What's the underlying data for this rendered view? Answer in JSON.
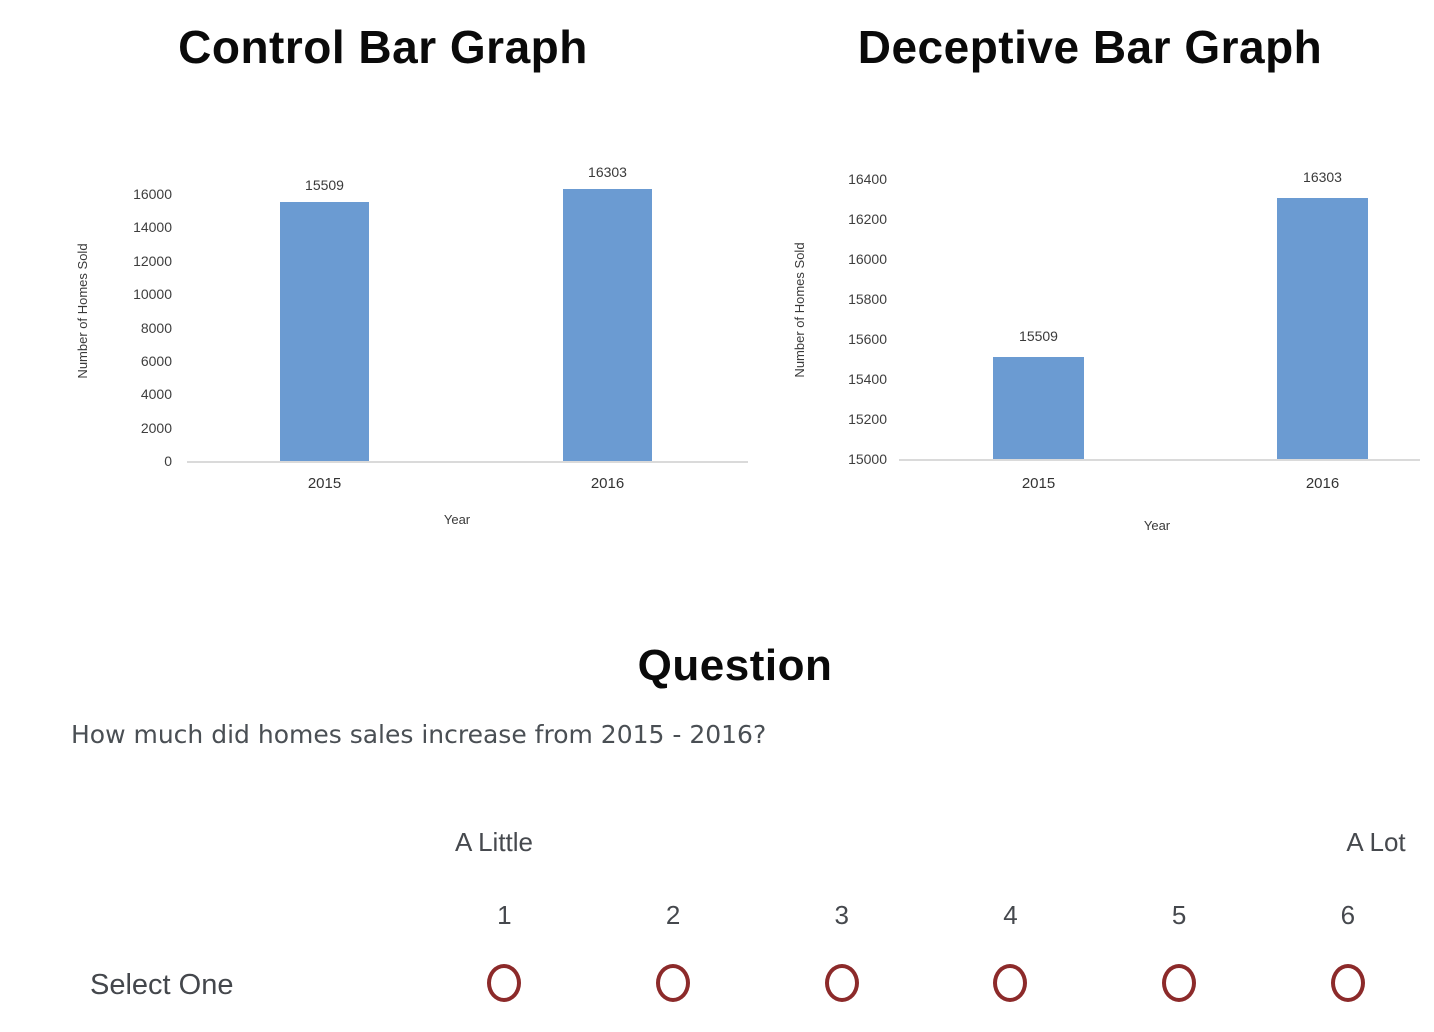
{
  "chart_data": [
    {
      "type": "bar",
      "title": "Control Bar Graph",
      "categories": [
        "2015",
        "2016"
      ],
      "values": [
        15509,
        16303
      ],
      "data_labels": [
        "15509",
        "16303"
      ],
      "xlabel": "Year",
      "ylabel": "Number of Homes Sold",
      "ylim": [
        0,
        16000
      ],
      "tick_step": 2000,
      "grid": false,
      "legend": false
    },
    {
      "type": "bar",
      "title": "Deceptive Bar Graph",
      "categories": [
        "2015",
        "2016"
      ],
      "values": [
        15509,
        16303
      ],
      "data_labels": [
        "15509",
        "16303"
      ],
      "xlabel": "Year",
      "ylabel": "Number of Homes Sold",
      "ylim": [
        15000,
        16400
      ],
      "tick_step": 200,
      "grid": false,
      "legend": false
    }
  ],
  "question": {
    "title": "Question",
    "text": "How much did homes sales increase from 2015 - 2016?",
    "scale": {
      "low_label": "A Little",
      "high_label": "A Lot",
      "options": [
        "1",
        "2",
        "3",
        "4",
        "5",
        "6"
      ],
      "select_label": "Select One"
    }
  },
  "colors": {
    "bar_fill": "#6b9bd2",
    "axis_line": "#dadada",
    "radio_ring": "#8c2a2a",
    "title_text": "#0a0a0a",
    "question_text": "#4a4f54",
    "chart_text": "#3a3a3a"
  }
}
